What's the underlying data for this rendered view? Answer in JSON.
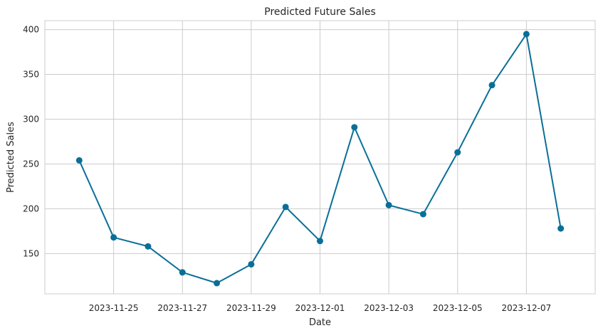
{
  "chart_data": {
    "type": "line",
    "title": "Predicted Future Sales",
    "xlabel": "Date",
    "ylabel": "Predicted Sales",
    "x": [
      "2023-11-24",
      "2023-11-25",
      "2023-11-26",
      "2023-11-27",
      "2023-11-28",
      "2023-11-29",
      "2023-11-30",
      "2023-12-01",
      "2023-12-02",
      "2023-12-03",
      "2023-12-04",
      "2023-12-05",
      "2023-12-06",
      "2023-12-07",
      "2023-12-08"
    ],
    "series": [
      {
        "values": [
          254,
          168,
          158,
          129,
          117,
          138,
          202,
          164,
          291,
          204,
          194,
          263,
          338,
          395,
          178
        ],
        "color": "#0a6f97",
        "marker": "circle"
      }
    ],
    "xlim": [
      "2023-11-23",
      "2023-12-09"
    ],
    "ylim": [
      105,
      410
    ],
    "x_ticks": [
      "2023-11-25",
      "2023-11-27",
      "2023-11-29",
      "2023-12-01",
      "2023-12-03",
      "2023-12-05",
      "2023-12-07"
    ],
    "y_ticks": [
      150,
      200,
      250,
      300,
      350,
      400
    ],
    "grid": true,
    "legend": "none"
  }
}
